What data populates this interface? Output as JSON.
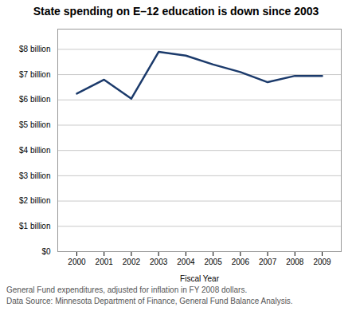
{
  "chart_data": {
    "type": "line",
    "title": "State spending on E–12 education is down since 2003",
    "xlabel": "Fiscal Year",
    "x": [
      2000,
      2001,
      2002,
      2003,
      2004,
      2005,
      2006,
      2007,
      2008,
      2009
    ],
    "values": [
      6.25,
      6.8,
      6.05,
      7.9,
      7.75,
      7.4,
      7.1,
      6.7,
      6.95,
      6.95
    ],
    "color": "#1b3a6b",
    "xlim": [
      1999.3,
      2009.7
    ],
    "xticks": [
      2000,
      2001,
      2002,
      2003,
      2004,
      2005,
      2006,
      2007,
      2008,
      2009
    ],
    "ylim": [
      0,
      8.8
    ],
    "yticks": [
      {
        "value": 0,
        "label": "$0"
      },
      {
        "value": 1,
        "label": "$1 billion"
      },
      {
        "value": 2,
        "label": "$2 billion"
      },
      {
        "value": 3,
        "label": "$3 billion"
      },
      {
        "value": 4,
        "label": "$4 billion"
      },
      {
        "value": 5,
        "label": "$5 billion"
      },
      {
        "value": 6,
        "label": "$6 billion"
      },
      {
        "value": 7,
        "label": "$7 billion"
      },
      {
        "value": 8,
        "label": "$8 billion"
      }
    ],
    "grid": true,
    "annotations": [
      "General Fund expenditures, adjusted for inflation in FY 2008 dollars.",
      "Data Source: Minnesota Department of Finance, General Fund Balance Analysis."
    ]
  }
}
